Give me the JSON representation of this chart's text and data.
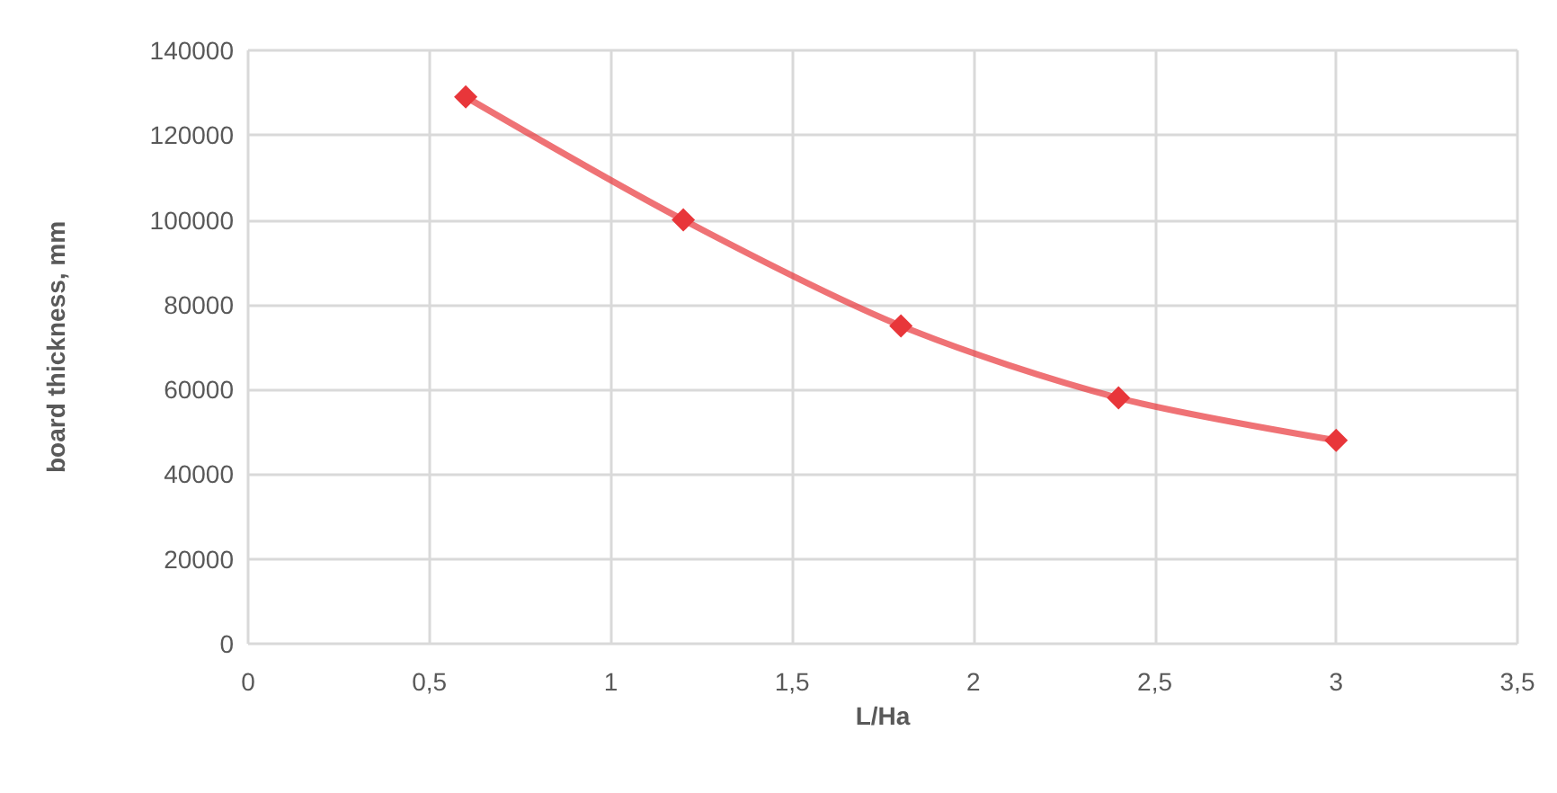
{
  "chart_data": {
    "type": "line",
    "xlabel": "L/Ha",
    "ylabel": "board thickness, mm",
    "x": [
      0.6,
      1.2,
      1.8,
      2.4,
      3
    ],
    "series": [
      {
        "color": "#e8363a",
        "values": [
          129000,
          100000,
          75000,
          58000,
          48000
        ]
      }
    ],
    "xlim": [
      0,
      3.5
    ],
    "xticks": [
      0,
      {
        "value": 0.5,
        "label": "0,5"
      },
      1,
      {
        "value": 1.5,
        "label": "1,5"
      },
      2,
      {
        "value": 2.5,
        "label": "2,5"
      },
      3,
      {
        "value": 3.5,
        "label": "3,5"
      }
    ],
    "ylim": [
      0,
      140000
    ],
    "yticks": [
      0,
      20000,
      40000,
      60000,
      80000,
      100000,
      120000,
      140000
    ],
    "grid": true,
    "marker": "diamond",
    "line_style": "solid"
  }
}
